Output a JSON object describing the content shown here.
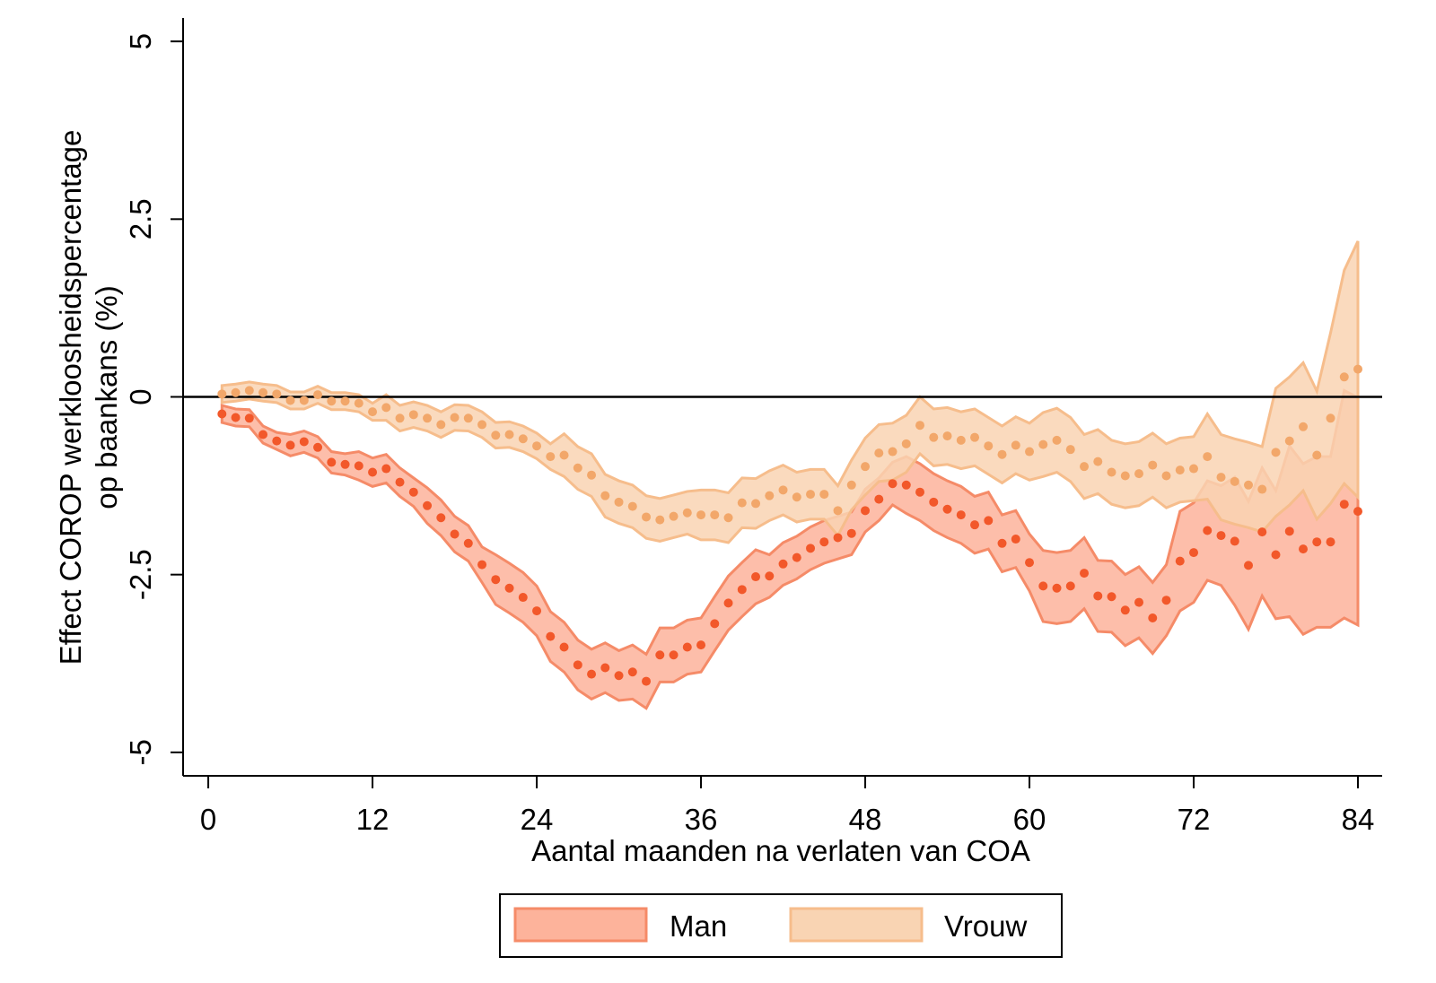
{
  "chart_data": {
    "type": "band-scatter",
    "ylabel": [
      "Effect COROP werkloosheidspercentage",
      "op baankans (%)"
    ],
    "xlabel": "Aantal maanden na verlaten van COA",
    "xlim": [
      -1.84,
      85.77
    ],
    "ylim": [
      -5.33,
      5.33
    ],
    "xticks": [
      0,
      12,
      24,
      36,
      48,
      60,
      72,
      84
    ],
    "yticks": [
      -5,
      -2.5,
      0,
      2.5,
      5
    ],
    "hline": 0,
    "legend": "bottom",
    "x": [
      1,
      2,
      3,
      4,
      5,
      6,
      7,
      8,
      9,
      10,
      11,
      12,
      13,
      14,
      15,
      16,
      17,
      18,
      19,
      20,
      21,
      22,
      23,
      24,
      25,
      26,
      27,
      28,
      29,
      30,
      31,
      32,
      33,
      34,
      35,
      36,
      37,
      38,
      39,
      40,
      41,
      42,
      43,
      44,
      45,
      46,
      47,
      48,
      49,
      50,
      51,
      52,
      53,
      54,
      55,
      56,
      57,
      58,
      59,
      60,
      61,
      62,
      63,
      64,
      65,
      66,
      67,
      68,
      69,
      70,
      71,
      72,
      73,
      74,
      75,
      76,
      77,
      78,
      79,
      80,
      81,
      82,
      83,
      84
    ],
    "series": [
      {
        "name": "Man",
        "color": "#fdb39b",
        "line_color": "#f58b68",
        "point_color": "#f2582a",
        "values": [
          -0.24,
          -0.29,
          -0.3,
          -0.53,
          -0.62,
          -0.68,
          -0.63,
          -0.71,
          -0.92,
          -0.95,
          -0.97,
          -1.06,
          -1.01,
          -1.2,
          -1.34,
          -1.53,
          -1.7,
          -1.93,
          -2.06,
          -2.36,
          -2.57,
          -2.69,
          -2.82,
          -3.01,
          -3.37,
          -3.52,
          -3.77,
          -3.9,
          -3.81,
          -3.92,
          -3.87,
          -4.0,
          -3.63,
          -3.63,
          -3.52,
          -3.49,
          -3.19,
          -2.9,
          -2.71,
          -2.53,
          -2.52,
          -2.35,
          -2.26,
          -2.13,
          -2.04,
          -1.98,
          -1.92,
          -1.6,
          -1.44,
          -1.22,
          -1.24,
          -1.34,
          -1.48,
          -1.58,
          -1.66,
          -1.8,
          -1.74,
          -2.06,
          -2.0,
          -2.33,
          -2.66,
          -2.69,
          -2.66,
          -2.48,
          -2.8,
          -2.81,
          -3.0,
          -2.89,
          -3.11,
          -2.86,
          -2.31,
          -2.19,
          -1.88,
          -1.95,
          -2.03,
          -2.37,
          -1.9,
          -2.22,
          -1.89,
          -2.14,
          -2.04,
          -2.04,
          -1.51,
          -1.61
        ],
        "upper": [
          -0.12,
          -0.17,
          -0.18,
          -0.41,
          -0.5,
          -0.53,
          -0.48,
          -0.56,
          -0.77,
          -0.8,
          -0.77,
          -0.86,
          -0.81,
          -1.0,
          -1.14,
          -1.28,
          -1.45,
          -1.68,
          -1.81,
          -2.11,
          -2.22,
          -2.34,
          -2.47,
          -2.66,
          -3.02,
          -3.17,
          -3.42,
          -3.55,
          -3.46,
          -3.57,
          -3.49,
          -3.62,
          -3.25,
          -3.25,
          -3.14,
          -3.11,
          -2.81,
          -2.52,
          -2.33,
          -2.15,
          -2.22,
          -2.05,
          -1.96,
          -1.83,
          -1.74,
          -1.68,
          -1.62,
          -1.3,
          -1.14,
          -0.92,
          -0.84,
          -0.94,
          -1.08,
          -1.18,
          -1.26,
          -1.4,
          -1.34,
          -1.66,
          -1.6,
          -1.93,
          -2.16,
          -2.19,
          -2.16,
          -1.98,
          -2.3,
          -2.31,
          -2.5,
          -2.39,
          -2.61,
          -2.36,
          -1.61,
          -1.49,
          -1.18,
          -1.25,
          -1.13,
          -1.47,
          -1.0,
          -1.32,
          -0.69,
          -0.94,
          -0.84,
          -0.84,
          0.09,
          -0.01
        ],
        "lower": [
          -0.36,
          -0.41,
          -0.42,
          -0.65,
          -0.74,
          -0.83,
          -0.78,
          -0.86,
          -1.07,
          -1.1,
          -1.17,
          -1.26,
          -1.21,
          -1.4,
          -1.54,
          -1.78,
          -1.95,
          -2.18,
          -2.31,
          -2.61,
          -2.92,
          -3.04,
          -3.17,
          -3.36,
          -3.72,
          -3.87,
          -4.12,
          -4.25,
          -4.16,
          -4.27,
          -4.25,
          -4.38,
          -4.01,
          -4.01,
          -3.9,
          -3.87,
          -3.57,
          -3.28,
          -3.09,
          -2.91,
          -2.82,
          -2.65,
          -2.56,
          -2.43,
          -2.34,
          -2.28,
          -2.22,
          -1.9,
          -1.74,
          -1.52,
          -1.64,
          -1.74,
          -1.88,
          -1.98,
          -2.06,
          -2.2,
          -2.14,
          -2.46,
          -2.4,
          -2.73,
          -3.16,
          -3.19,
          -3.16,
          -2.98,
          -3.3,
          -3.31,
          -3.5,
          -3.39,
          -3.61,
          -3.36,
          -3.01,
          -2.89,
          -2.58,
          -2.65,
          -2.93,
          -3.27,
          -2.8,
          -3.12,
          -3.09,
          -3.34,
          -3.24,
          -3.24,
          -3.11,
          -3.21
        ]
      },
      {
        "name": "Vrouw",
        "color": "#f9d4b3",
        "line_color": "#f6bd8c",
        "point_color": "#f2a76a",
        "values": [
          0.04,
          0.06,
          0.09,
          0.06,
          0.04,
          -0.05,
          -0.05,
          0.03,
          -0.06,
          -0.06,
          -0.09,
          -0.21,
          -0.15,
          -0.3,
          -0.25,
          -0.3,
          -0.39,
          -0.29,
          -0.3,
          -0.39,
          -0.54,
          -0.53,
          -0.59,
          -0.69,
          -0.84,
          -0.82,
          -1.0,
          -1.1,
          -1.39,
          -1.48,
          -1.54,
          -1.69,
          -1.73,
          -1.68,
          -1.63,
          -1.66,
          -1.66,
          -1.7,
          -1.49,
          -1.5,
          -1.39,
          -1.31,
          -1.41,
          -1.37,
          -1.37,
          -1.6,
          -1.24,
          -0.98,
          -0.79,
          -0.77,
          -0.66,
          -0.4,
          -0.57,
          -0.55,
          -0.61,
          -0.57,
          -0.69,
          -0.81,
          -0.68,
          -0.77,
          -0.67,
          -0.61,
          -0.74,
          -0.98,
          -0.91,
          -1.06,
          -1.11,
          -1.08,
          -0.96,
          -1.11,
          -1.03,
          -1.01,
          -0.84,
          -1.13,
          -1.19,
          -1.24,
          -1.3,
          -0.78,
          -0.62,
          -0.42,
          -0.82,
          -0.3,
          0.28,
          0.39
        ],
        "upper": [
          0.16,
          0.18,
          0.21,
          0.18,
          0.16,
          0.07,
          0.07,
          0.15,
          0.06,
          0.06,
          0.03,
          -0.09,
          0.03,
          -0.12,
          -0.07,
          -0.12,
          -0.21,
          -0.11,
          -0.12,
          -0.21,
          -0.36,
          -0.35,
          -0.41,
          -0.51,
          -0.66,
          -0.52,
          -0.7,
          -0.8,
          -1.09,
          -1.18,
          -1.24,
          -1.39,
          -1.43,
          -1.38,
          -1.33,
          -1.31,
          -1.31,
          -1.35,
          -1.14,
          -1.15,
          -1.04,
          -0.96,
          -1.06,
          -1.02,
          -1.02,
          -1.25,
          -0.89,
          -0.58,
          -0.39,
          -0.37,
          -0.26,
          0.0,
          -0.17,
          -0.15,
          -0.21,
          -0.17,
          -0.29,
          -0.41,
          -0.28,
          -0.37,
          -0.22,
          -0.16,
          -0.29,
          -0.53,
          -0.46,
          -0.61,
          -0.66,
          -0.63,
          -0.51,
          -0.66,
          -0.58,
          -0.56,
          -0.24,
          -0.53,
          -0.59,
          -0.64,
          -0.7,
          0.12,
          0.28,
          0.48,
          0.08,
          0.9,
          1.78,
          2.19
        ],
        "lower": [
          -0.08,
          -0.06,
          -0.03,
          -0.06,
          -0.08,
          -0.17,
          -0.17,
          -0.09,
          -0.18,
          -0.18,
          -0.21,
          -0.33,
          -0.33,
          -0.48,
          -0.43,
          -0.48,
          -0.57,
          -0.47,
          -0.48,
          -0.57,
          -0.72,
          -0.71,
          -0.77,
          -0.87,
          -1.02,
          -1.12,
          -1.3,
          -1.4,
          -1.69,
          -1.78,
          -1.84,
          -1.99,
          -2.03,
          -1.98,
          -1.93,
          -2.01,
          -2.01,
          -2.05,
          -1.84,
          -1.85,
          -1.74,
          -1.66,
          -1.76,
          -1.72,
          -1.72,
          -1.95,
          -1.59,
          -1.38,
          -1.19,
          -1.17,
          -1.06,
          -0.8,
          -0.97,
          -0.95,
          -1.01,
          -0.97,
          -1.09,
          -1.21,
          -1.08,
          -1.17,
          -1.12,
          -1.06,
          -1.19,
          -1.43,
          -1.36,
          -1.51,
          -1.56,
          -1.53,
          -1.41,
          -1.56,
          -1.48,
          -1.46,
          -1.44,
          -1.73,
          -1.79,
          -1.84,
          -1.9,
          -1.68,
          -1.52,
          -1.32,
          -1.72,
          -1.5,
          -1.22,
          -1.41
        ]
      }
    ]
  }
}
